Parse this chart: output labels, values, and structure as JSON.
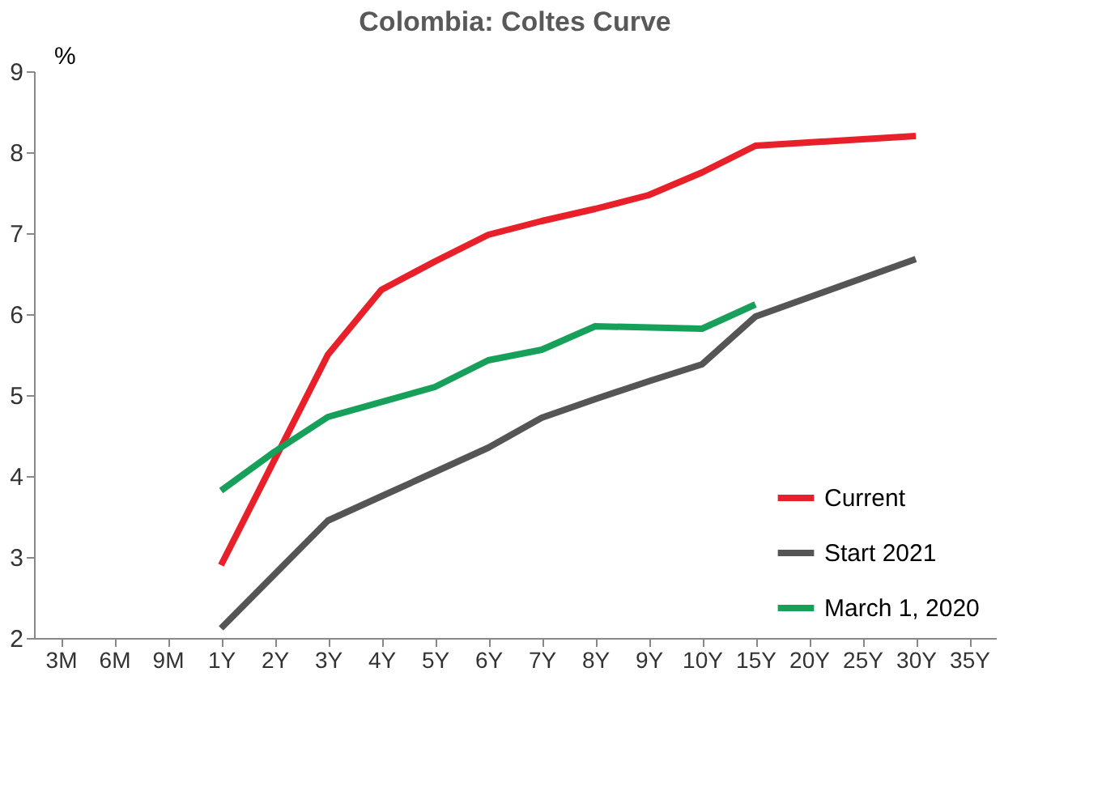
{
  "chart_data": {
    "type": "line",
    "title": "Colombia: Coltes Curve",
    "ylabel": "%",
    "categories": [
      "3M",
      "6M",
      "9M",
      "1Y",
      "2Y",
      "3Y",
      "4Y",
      "5Y",
      "6Y",
      "7Y",
      "8Y",
      "9Y",
      "10Y",
      "15Y",
      "20Y",
      "25Y",
      "30Y",
      "35Y"
    ],
    "series": [
      {
        "name": "Current",
        "color": "#e8202a",
        "values": [
          null,
          null,
          null,
          2.9,
          null,
          5.5,
          6.3,
          6.65,
          6.98,
          7.15,
          7.3,
          7.47,
          7.75,
          8.08,
          null,
          null,
          8.2,
          null
        ]
      },
      {
        "name": "Start 2021",
        "color": "#555555",
        "values": [
          null,
          null,
          null,
          2.12,
          null,
          3.45,
          3.75,
          4.05,
          4.35,
          4.72,
          4.95,
          5.17,
          5.38,
          5.97,
          null,
          null,
          6.68,
          null
        ]
      },
      {
        "name": "March 1, 2020",
        "color": "#17a05a",
        "values": [
          null,
          null,
          null,
          3.82,
          4.3,
          4.73,
          null,
          5.1,
          5.43,
          5.56,
          5.85,
          null,
          5.82,
          6.12,
          null,
          null,
          null,
          null
        ]
      }
    ],
    "ylim": [
      2,
      9
    ],
    "yticks": [
      2,
      3,
      4,
      5,
      6,
      7,
      8,
      9
    ],
    "grid": false,
    "legend": "bottom right",
    "line_style": "solid",
    "marker": "none"
  }
}
